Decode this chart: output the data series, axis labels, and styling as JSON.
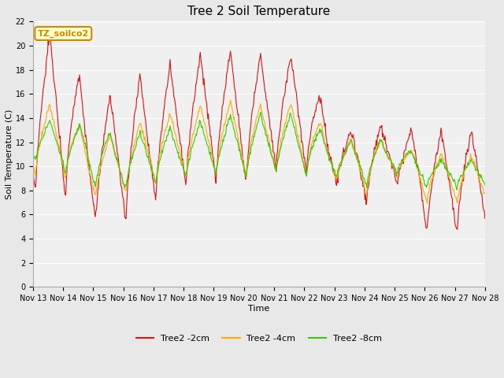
{
  "title": "Tree 2 Soil Temperature",
  "xlabel": "Time",
  "ylabel": "Soil Temperature (C)",
  "ylim": [
    0,
    22
  ],
  "yticks": [
    0,
    2,
    4,
    6,
    8,
    10,
    12,
    14,
    16,
    18,
    20,
    22
  ],
  "x_labels": [
    "Nov 13",
    "Nov 14",
    "Nov 15",
    "Nov 16",
    "Nov 17",
    "Nov 18",
    "Nov 19",
    "Nov 20",
    "Nov 21",
    "Nov 22",
    "Nov 23",
    "Nov 24",
    "Nov 25",
    "Nov 26",
    "Nov 27",
    "Nov 28"
  ],
  "annotation_label": "TZ_soilco2",
  "annotation_bg": "#ffffcc",
  "annotation_border": "#cc8800",
  "legend_labels": [
    "Tree2 -2cm",
    "Tree2 -4cm",
    "Tree2 -8cm"
  ],
  "colors": [
    "#dd1111",
    "#ffaa00",
    "#33cc00"
  ],
  "bg_color": "#e8e8e8",
  "plot_bg": "#f0f0f0",
  "grid_color": "#ffffff",
  "title_fontsize": 11,
  "axis_label_fontsize": 8,
  "tick_fontsize": 7,
  "red_peaks": [
    20.5,
    21.3,
    14.5,
    17.0,
    18.0,
    18.8,
    19.8,
    19.5,
    19.0,
    19.3,
    12.8,
    13.3,
    13.5,
    13.0
  ],
  "red_troughs": [
    7.5,
    7.3,
    5.5,
    5.1,
    6.9,
    8.3,
    8.5,
    8.4,
    9.8,
    9.3,
    8.6,
    6.9,
    8.8,
    4.5
  ],
  "orange_peaks": [
    15.0,
    15.3,
    12.0,
    13.0,
    14.2,
    14.5,
    15.5,
    15.3,
    15.0,
    15.5,
    12.0,
    12.5,
    12.0,
    11.0
  ],
  "orange_troughs": [
    9.3,
    9.0,
    7.5,
    7.8,
    8.5,
    9.0,
    9.2,
    9.0,
    9.5,
    9.0,
    9.0,
    7.5,
    9.5,
    7.0
  ],
  "green_peaks": [
    13.8,
    13.8,
    13.2,
    12.5,
    13.1,
    13.3,
    14.1,
    14.3,
    14.4,
    14.3,
    12.0,
    12.2,
    12.2,
    10.5
  ],
  "green_troughs": [
    10.5,
    9.5,
    8.2,
    8.0,
    8.5,
    9.0,
    9.2,
    9.0,
    9.5,
    9.2,
    9.2,
    8.2,
    9.5,
    8.3
  ]
}
